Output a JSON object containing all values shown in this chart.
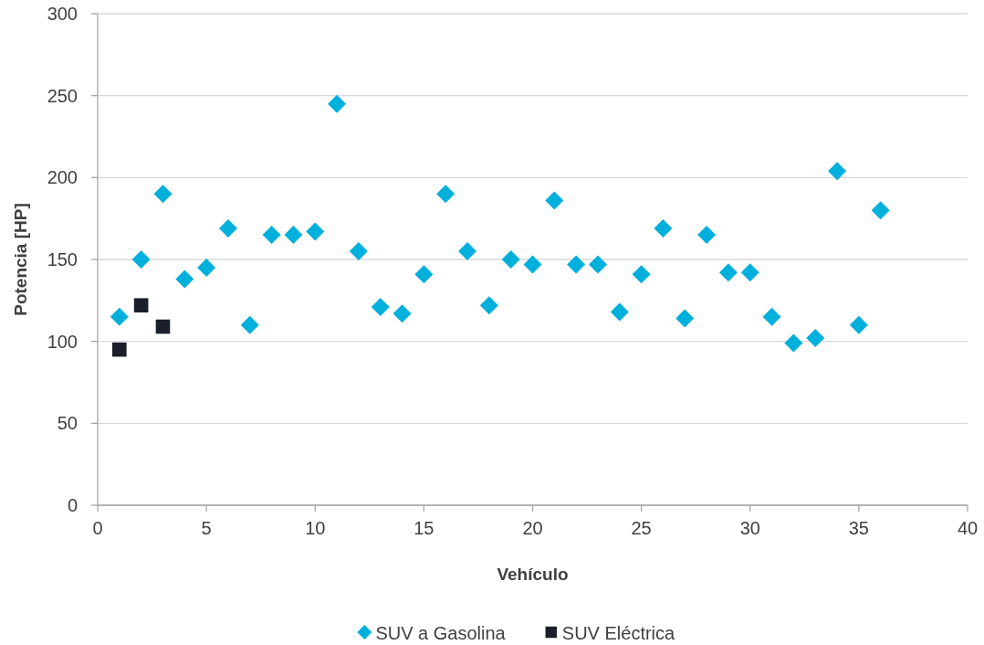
{
  "chart_data": {
    "type": "scatter",
    "xlabel": "Vehículo",
    "ylabel": "Potencia [HP]",
    "xlim": [
      0,
      40
    ],
    "xticks": [
      0,
      5,
      10,
      15,
      20,
      25,
      30,
      35,
      40
    ],
    "ylim": [
      0,
      300
    ],
    "yticks": [
      0,
      50,
      100,
      150,
      200,
      250,
      300
    ],
    "grid": "y",
    "legend": "bottom",
    "series": [
      {
        "name": "SUV a Gasolina",
        "color": "#00b0dc",
        "marker": "diamond",
        "x": [
          1,
          2,
          3,
          4,
          5,
          6,
          7,
          8,
          9,
          10,
          11,
          12,
          13,
          14,
          15,
          16,
          17,
          18,
          19,
          20,
          21,
          22,
          23,
          24,
          25,
          26,
          27,
          28,
          29,
          30,
          31,
          32,
          33,
          34,
          35,
          36
        ],
        "values": [
          115,
          150,
          190,
          138,
          145,
          169,
          110,
          165,
          165,
          167,
          245,
          155,
          121,
          117,
          141,
          190,
          155,
          122,
          150,
          147,
          186,
          147,
          147,
          118,
          141,
          169,
          114,
          165,
          142,
          142,
          115,
          99,
          102,
          204,
          110,
          180
        ]
      },
      {
        "name": "SUV Eléctrica",
        "color": "#1a1f2b",
        "marker": "square",
        "x": [
          1,
          2,
          3
        ],
        "values": [
          95,
          122,
          109
        ]
      }
    ]
  }
}
